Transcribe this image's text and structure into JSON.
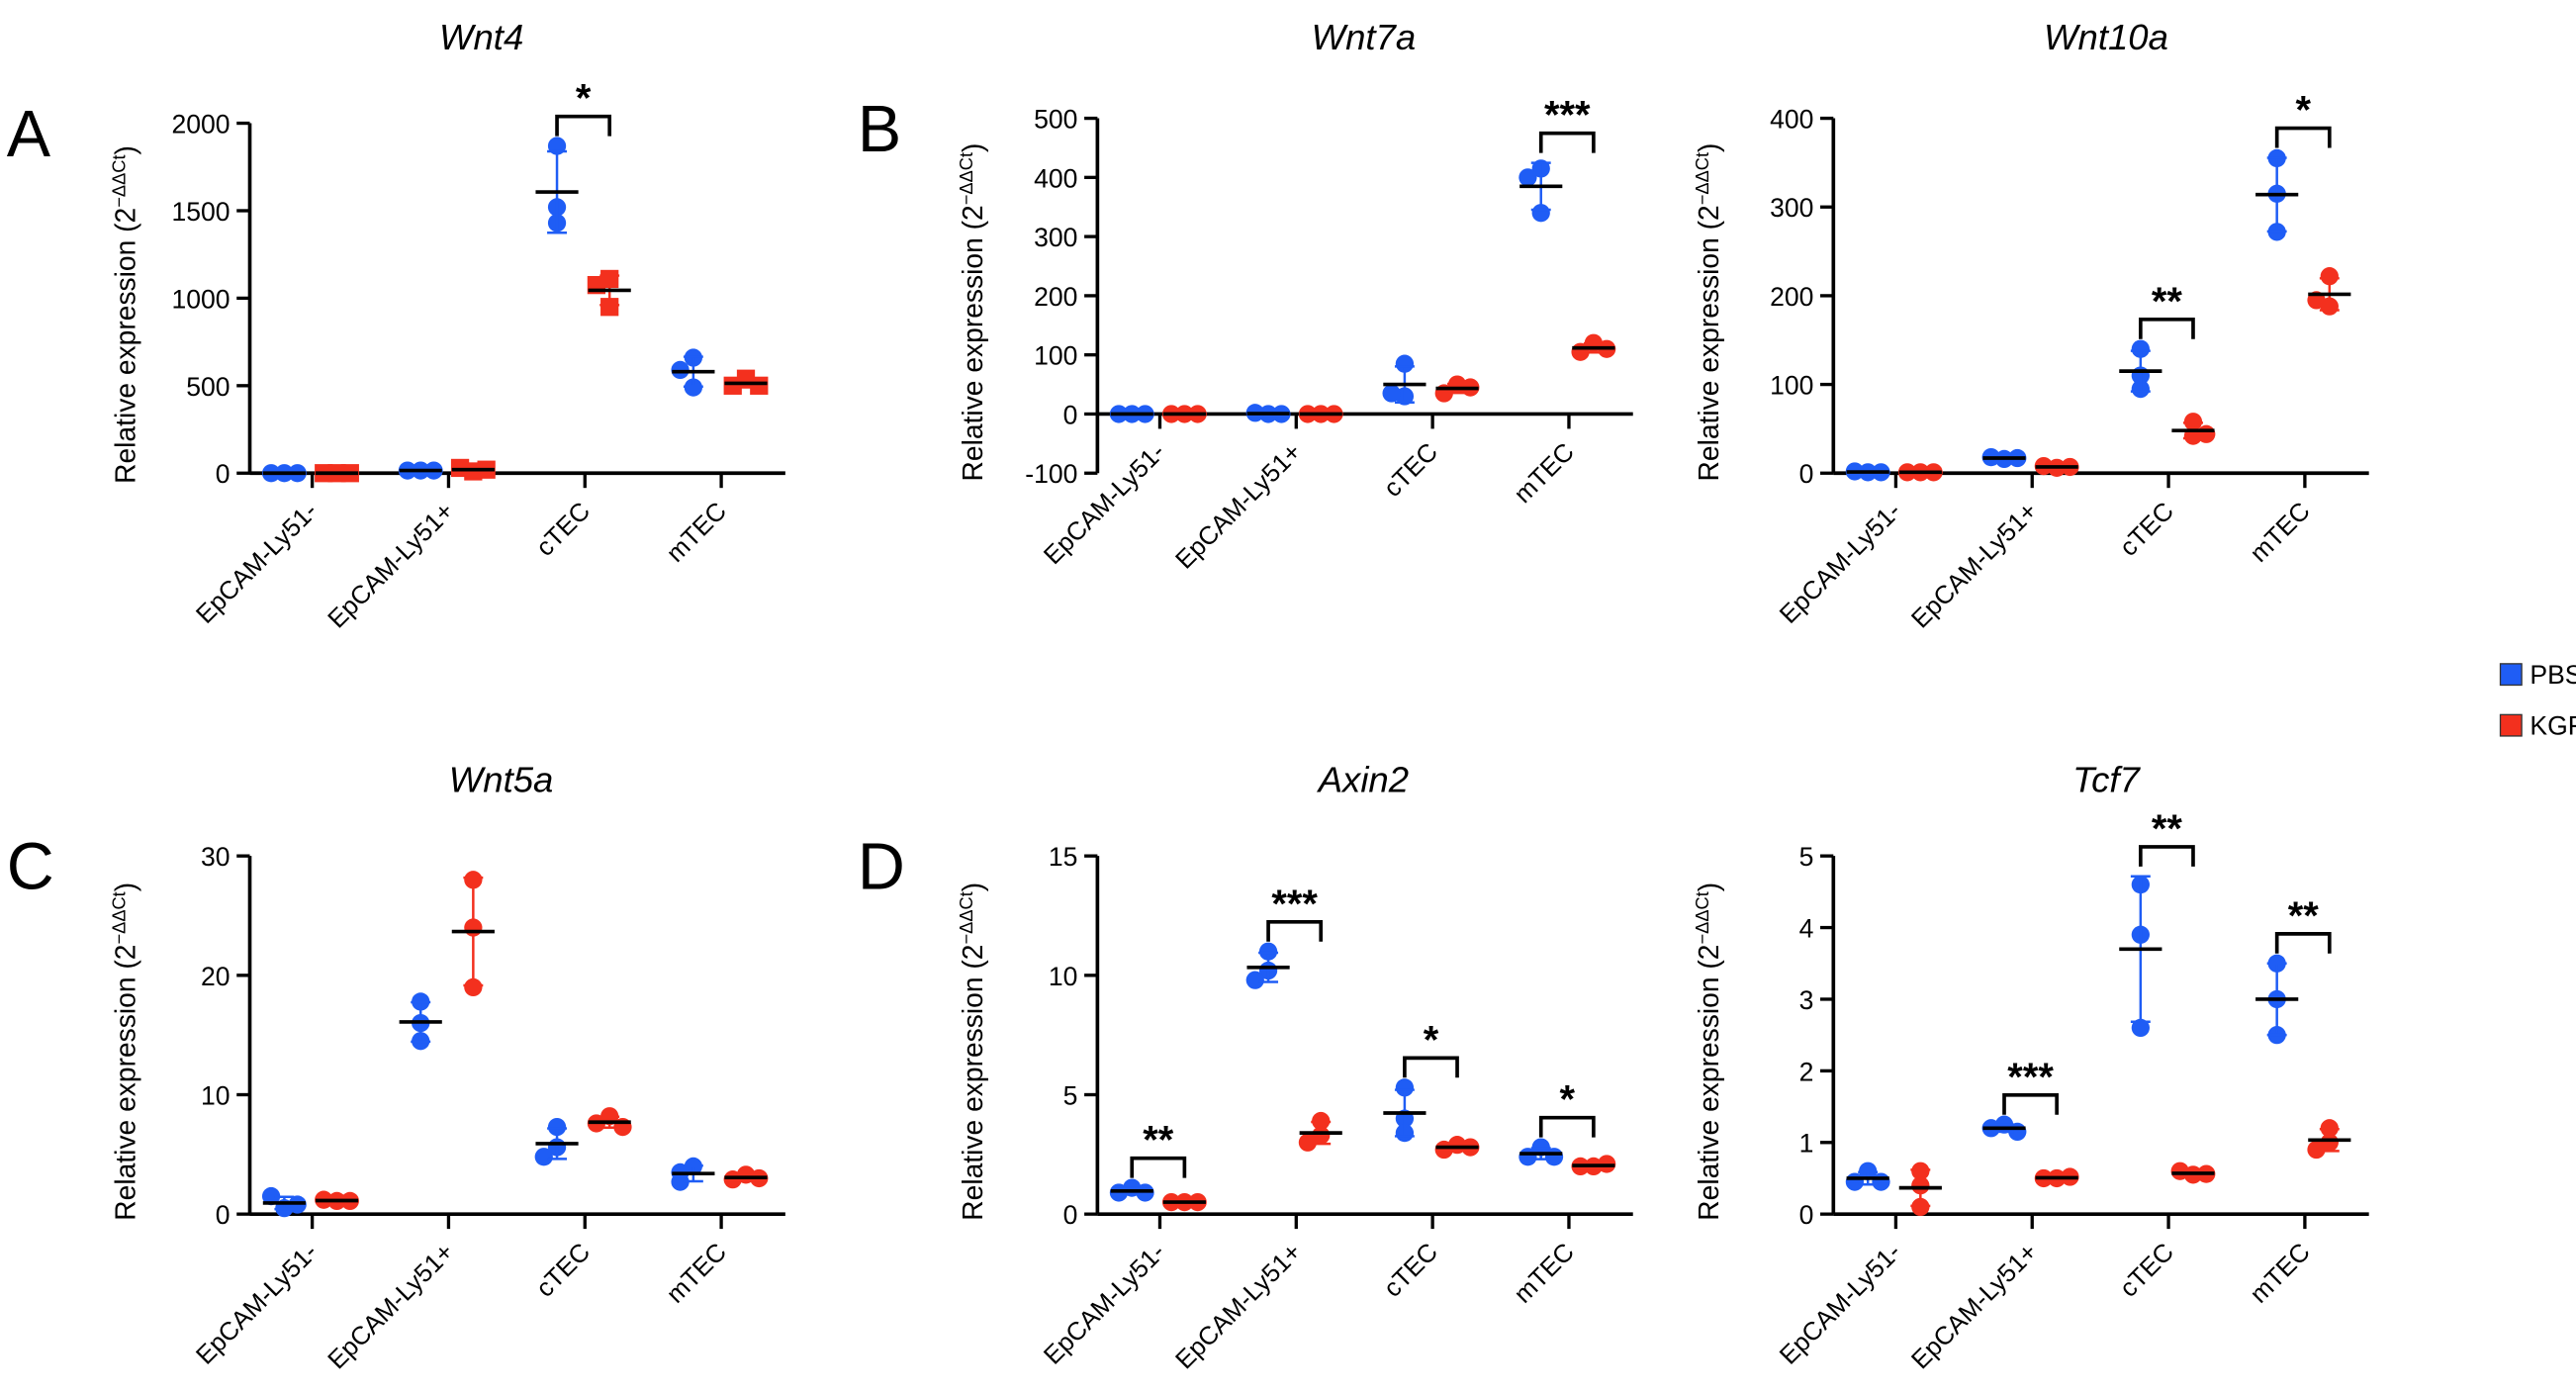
{
  "chart_data": {
    "type": "scatter",
    "legend": {
      "placement": "right",
      "entries": [
        {
          "label": "PBS",
          "color": "#1f5df5"
        },
        {
          "label": "KGF",
          "color": "#f3301e"
        }
      ]
    },
    "categories": [
      "EpCAM-Ly51-",
      "EpCAM-Ly51+",
      "cTEC",
      "mTEC"
    ],
    "ylabel_main": "Relative expression (2",
    "ylabel_sup": "−ΔΔCt",
    "ylabel_close": ")",
    "panels": [
      {
        "letter": "A",
        "title": "Wnt4",
        "ylim": [
          0,
          2000
        ],
        "yticks": [
          0,
          500,
          1000,
          1500,
          2000
        ],
        "kgf_marker": "square",
        "pbs": [
          [
            0,
            0,
            0
          ],
          [
            15,
            15,
            15
          ],
          [
            1870,
            1520,
            1430
          ],
          [
            660,
            590,
            490
          ]
        ],
        "kgf": [
          [
            0,
            0,
            0
          ],
          [
            10,
            30,
            20
          ],
          [
            1110,
            1075,
            950
          ],
          [
            540,
            500,
            500
          ]
        ],
        "sig": [
          "",
          "",
          "*",
          ""
        ]
      },
      {
        "letter": "B",
        "title": "Wnt7a",
        "ylim": [
          -100,
          500
        ],
        "yticks": [
          -100,
          0,
          100,
          200,
          300,
          400,
          500
        ],
        "kgf_marker": "circle",
        "pbs": [
          [
            0,
            0,
            0
          ],
          [
            0,
            2,
            0
          ],
          [
            85,
            30,
            35
          ],
          [
            415,
            400,
            340
          ]
        ],
        "kgf": [
          [
            0,
            0,
            0
          ],
          [
            0,
            0,
            0
          ],
          [
            50,
            35,
            45
          ],
          [
            120,
            105,
            110
          ]
        ],
        "sig": [
          "",
          "",
          "",
          "***"
        ]
      },
      {
        "letter": "",
        "title": "Wnt10a",
        "ylim": [
          0,
          400
        ],
        "yticks": [
          0,
          100,
          200,
          300,
          400
        ],
        "kgf_marker": "circle",
        "pbs": [
          [
            1,
            2,
            1
          ],
          [
            16,
            18,
            17
          ],
          [
            140,
            110,
            95
          ],
          [
            355,
            315,
            272
          ]
        ],
        "kgf": [
          [
            1,
            1,
            1
          ],
          [
            6,
            8,
            7
          ],
          [
            58,
            42,
            44
          ],
          [
            222,
            188,
            195
          ]
        ],
        "sig": [
          "",
          "",
          "**",
          "*"
        ]
      },
      {
        "letter": "C",
        "title": "Wnt5a",
        "ylim": [
          0,
          30
        ],
        "yticks": [
          0,
          10,
          20,
          30
        ],
        "kgf_marker": "circle",
        "pbs": [
          [
            0.5,
            1.5,
            0.8
          ],
          [
            17.8,
            16,
            14.5
          ],
          [
            7.3,
            5.6,
            4.8
          ],
          [
            4,
            3.5,
            2.7
          ]
        ],
        "kgf": [
          [
            1.1,
            1.2,
            1.1
          ],
          [
            28,
            24,
            19
          ],
          [
            8.2,
            7.6,
            7.3
          ],
          [
            3.3,
            2.9,
            3.0
          ]
        ],
        "sig": [
          "",
          "",
          "",
          ""
        ]
      },
      {
        "letter": "D",
        "title": "Axin2",
        "ylim": [
          0,
          15
        ],
        "yticks": [
          0,
          5,
          10,
          15
        ],
        "kgf_marker": "circle",
        "pbs": [
          [
            1.1,
            0.9,
            0.9
          ],
          [
            11,
            10.2,
            9.8
          ],
          [
            5.3,
            4.0,
            3.4
          ],
          [
            2.8,
            2.4,
            2.4
          ]
        ],
        "kgf": [
          [
            0.5,
            0.5,
            0.5
          ],
          [
            3.9,
            3.3,
            3.0
          ],
          [
            2.9,
            2.7,
            2.8
          ],
          [
            2.0,
            2.0,
            2.1
          ]
        ],
        "sig": [
          "**",
          "***",
          "*",
          "*"
        ]
      },
      {
        "letter": "",
        "title": "Tcf7",
        "ylim": [
          0,
          5
        ],
        "yticks": [
          0,
          1,
          2,
          3,
          4,
          5
        ],
        "kgf_marker": "circle",
        "pbs": [
          [
            0.6,
            0.45,
            0.45
          ],
          [
            1.25,
            1.2,
            1.15
          ],
          [
            4.6,
            3.9,
            2.6
          ],
          [
            3.5,
            3.0,
            2.5
          ]
        ],
        "kgf": [
          [
            0.6,
            0.4,
            0.1
          ],
          [
            0.5,
            0.5,
            0.52
          ],
          [
            0.55,
            0.6,
            0.56
          ],
          [
            1.2,
            1.0,
            0.9
          ]
        ],
        "sig": [
          "",
          "***",
          "**",
          "**"
        ]
      }
    ]
  }
}
